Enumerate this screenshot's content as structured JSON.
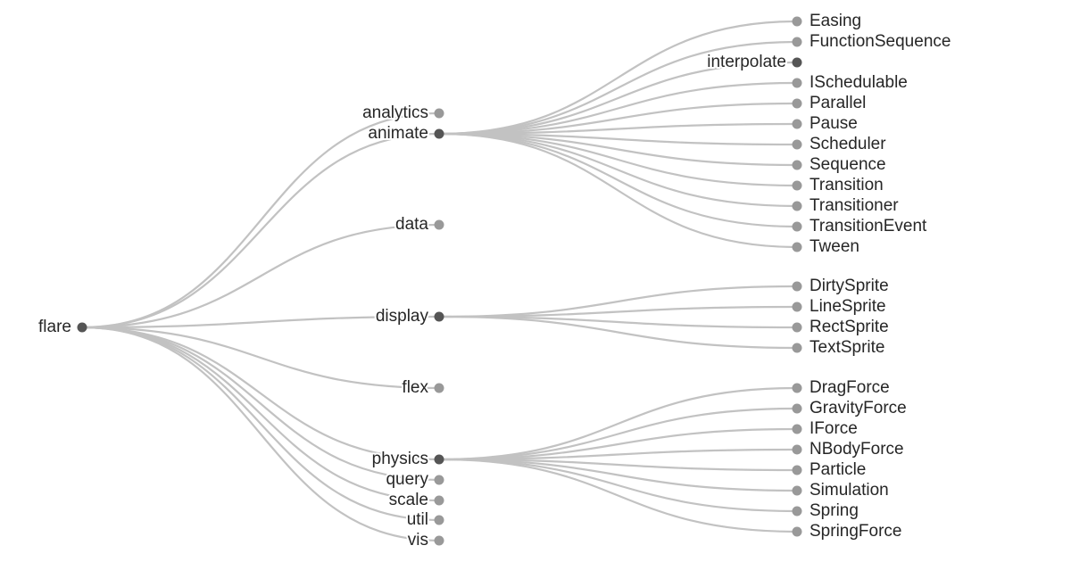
{
  "tree": {
    "name": "flare",
    "children": [
      {
        "name": "analytics"
      },
      {
        "name": "animate",
        "children": [
          {
            "name": "Easing"
          },
          {
            "name": "FunctionSequence"
          },
          {
            "name": "interpolate",
            "collapsed": true
          },
          {
            "name": "ISchedulable"
          },
          {
            "name": "Parallel"
          },
          {
            "name": "Pause"
          },
          {
            "name": "Scheduler"
          },
          {
            "name": "Sequence"
          },
          {
            "name": "Transition"
          },
          {
            "name": "Transitioner"
          },
          {
            "name": "TransitionEvent"
          },
          {
            "name": "Tween"
          }
        ]
      },
      {
        "name": "data"
      },
      {
        "name": "display",
        "children": [
          {
            "name": "DirtySprite"
          },
          {
            "name": "LineSprite"
          },
          {
            "name": "RectSprite"
          },
          {
            "name": "TextSprite"
          }
        ]
      },
      {
        "name": "flex"
      },
      {
        "name": "physics",
        "children": [
          {
            "name": "DragForce"
          },
          {
            "name": "GravityForce"
          },
          {
            "name": "IForce"
          },
          {
            "name": "NBodyForce"
          },
          {
            "name": "Particle"
          },
          {
            "name": "Simulation"
          },
          {
            "name": "Spring"
          },
          {
            "name": "SpringForce"
          }
        ]
      },
      {
        "name": "query"
      },
      {
        "name": "scale"
      },
      {
        "name": "util"
      },
      {
        "name": "vis"
      }
    ]
  },
  "colors": {
    "link": "#c2c2c2",
    "collapsed_node": "#555555",
    "leaf_node": "#999999",
    "label": "#262626"
  }
}
